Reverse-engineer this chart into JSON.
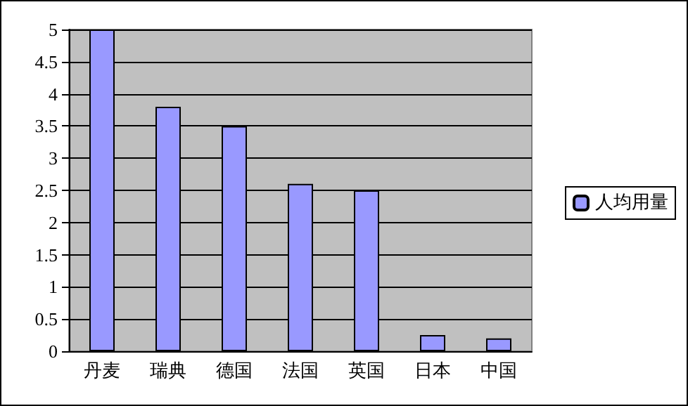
{
  "chart_data": {
    "type": "bar",
    "categories": [
      "丹麦",
      "瑞典",
      "德国",
      "法国",
      "英国",
      "日本",
      "中国"
    ],
    "series": [
      {
        "name": "人均用量",
        "color": "#9999ff",
        "values": [
          5,
          3.8,
          3.5,
          2.6,
          2.5,
          0.25,
          0.2
        ]
      }
    ],
    "ylim": [
      0,
      5
    ],
    "yticks": [
      0,
      0.5,
      1,
      1.5,
      2,
      2.5,
      3,
      3.5,
      4,
      4.5,
      5
    ],
    "grid": "y",
    "legend": "right"
  }
}
